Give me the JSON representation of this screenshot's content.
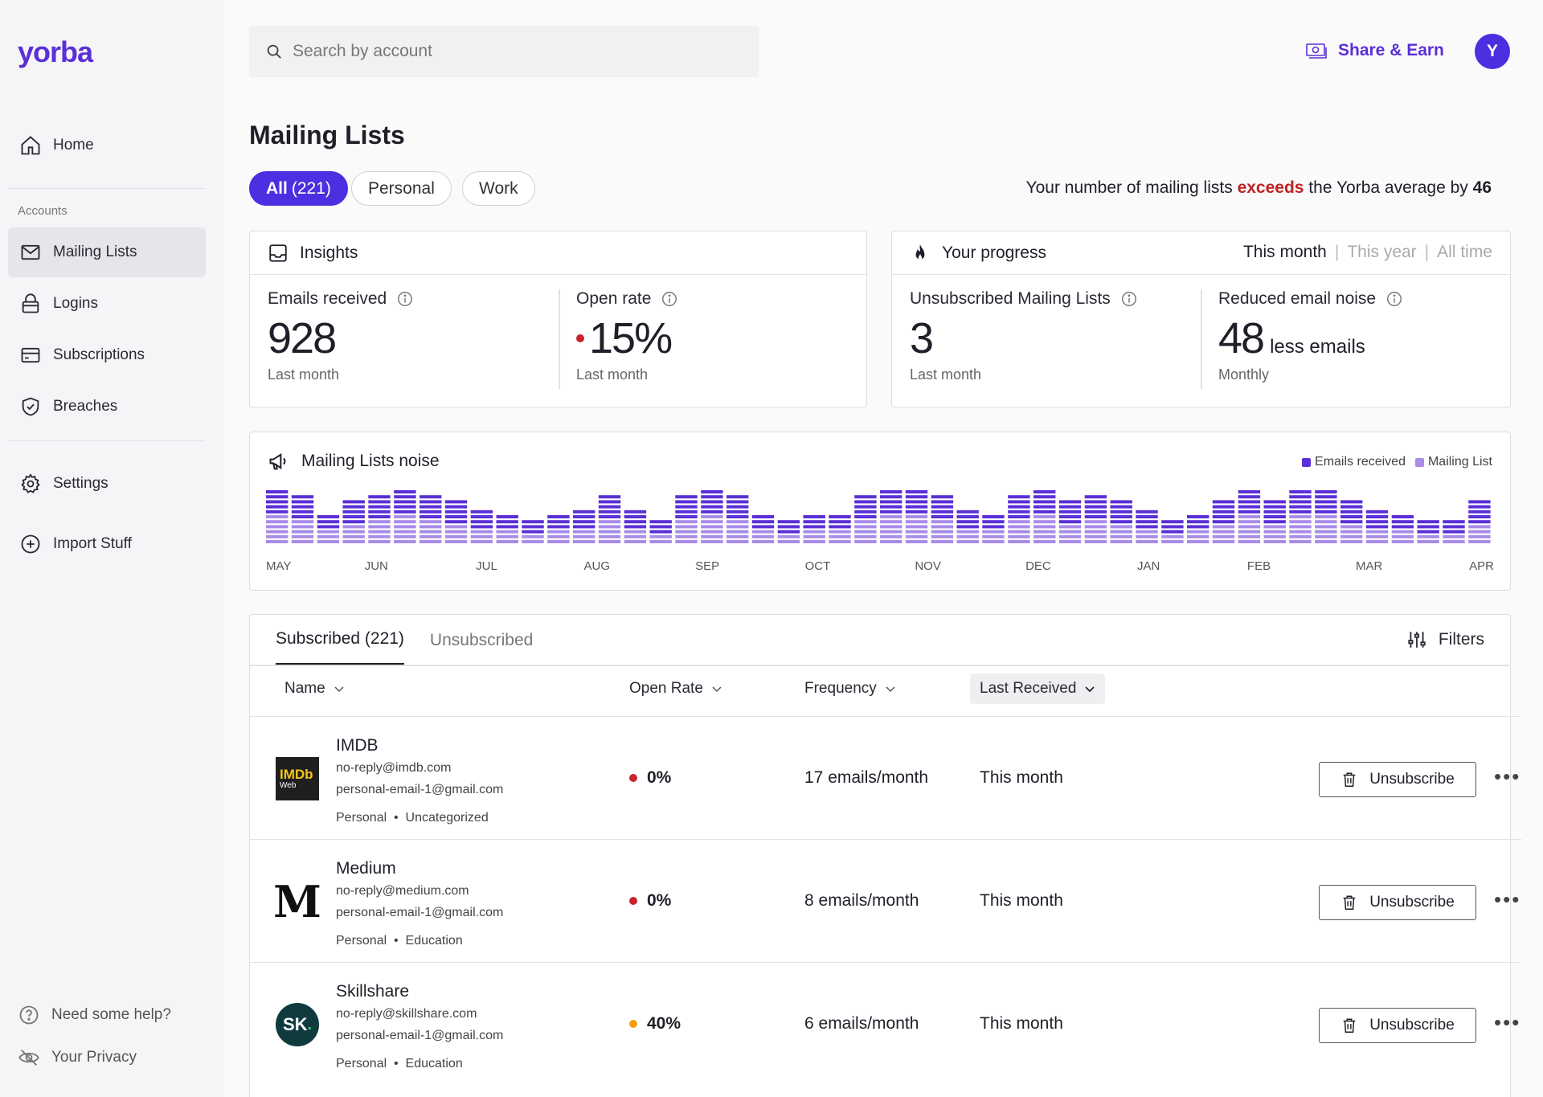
{
  "app": {
    "logo": "yorba"
  },
  "sidebar": {
    "home": "Home",
    "section": "Accounts",
    "items": [
      {
        "label": "Mailing Lists",
        "icon": "mail-icon",
        "active": true
      },
      {
        "label": "Logins",
        "icon": "lock-icon"
      },
      {
        "label": "Subscriptions",
        "icon": "credit-card-icon"
      },
      {
        "label": "Breaches",
        "icon": "shield-icon"
      }
    ],
    "settings": "Settings",
    "import": "Import Stuff",
    "help": "Need some help?",
    "privacy": "Your Privacy"
  },
  "header": {
    "search_placeholder": "Search by account",
    "share": "Share & Earn",
    "avatar": "Y"
  },
  "page": {
    "title": "Mailing Lists",
    "chips": [
      {
        "label": "All",
        "count": "(221)",
        "active": true
      },
      {
        "label": "Personal"
      },
      {
        "label": "Work"
      }
    ],
    "notice": {
      "pre": "Your number of mailing lists ",
      "emph": "exceeds",
      "post": " the Yorba average by ",
      "num": "46"
    }
  },
  "insights": {
    "title": "Insights",
    "emails_label": "Emails received",
    "emails_value": "928",
    "emails_sub": "Last month",
    "open_label": "Open rate",
    "open_value": "15%",
    "open_sub": "Last month"
  },
  "progress": {
    "title": "Your progress",
    "periods": [
      "This month",
      "This year",
      "All time"
    ],
    "unsub_label": "Unsubscribed Mailing Lists",
    "unsub_value": "3",
    "unsub_sub": "Last month",
    "noise_label": "Reduced email noise",
    "noise_value": "48",
    "noise_suffix": "less emails",
    "noise_sub": "Monthly"
  },
  "noise_chart": {
    "title": "Mailing Lists noise",
    "legend": [
      "Emails received",
      "Mailing List"
    ],
    "colors": {
      "emails": "#5b2fd6",
      "lists": "#a98ce8"
    }
  },
  "chart_data": {
    "type": "bar",
    "title": "Mailing Lists noise",
    "x_tick_labels": [
      "MAY",
      "JUN",
      "JUL",
      "AUG",
      "SEP",
      "OCT",
      "NOV",
      "DEC",
      "JAN",
      "FEB",
      "MAR",
      "APR"
    ],
    "series": [
      {
        "name": "Emails received"
      },
      {
        "name": "Mailing List"
      }
    ],
    "values": [
      9,
      8,
      5,
      7,
      8,
      9,
      8,
      7,
      6,
      5,
      4,
      5,
      6,
      8,
      6,
      4,
      8,
      9,
      8,
      5,
      4,
      5,
      5,
      8,
      9,
      9,
      8,
      6,
      5,
      8,
      9,
      7,
      8,
      7,
      6,
      4,
      5,
      7,
      9,
      7,
      9,
      9,
      7,
      6,
      5,
      4,
      4,
      7
    ],
    "ylim": [
      0,
      9
    ],
    "grid": false,
    "legend_position": "top-right"
  },
  "table": {
    "tabs": [
      {
        "label": "Subscribed (221)",
        "active": true
      },
      {
        "label": "Unsubscribed"
      }
    ],
    "filters": "Filters",
    "columns": [
      "Name",
      "Open Rate",
      "Frequency",
      "Last Received"
    ],
    "unsub_label": "Unsubscribe",
    "rows": [
      {
        "name": "IMDB",
        "sender": "no-reply@imdb.com",
        "account": "personal-email-1@gmail.com",
        "tag1": "Personal",
        "tag2": "Uncategorized",
        "rate": "0%",
        "rate_color": "#c8232f",
        "freq": "17 emails/month",
        "last": "This month",
        "logo": "IMDb",
        "logo_sub": "Web"
      },
      {
        "name": "Medium",
        "sender": "no-reply@medium.com",
        "account": "personal-email-1@gmail.com",
        "tag1": "Personal",
        "tag2": "Education",
        "rate": "0%",
        "rate_color": "#c8232f",
        "freq": "8 emails/month",
        "last": "This month",
        "logo": "M"
      },
      {
        "name": "Skillshare",
        "sender": "no-reply@skillshare.com",
        "account": "personal-email-1@gmail.com",
        "tag1": "Personal",
        "tag2": "Education",
        "rate": "40%",
        "rate_color": "#f59e0b",
        "freq": "6 emails/month",
        "last": "This month",
        "logo": "SK"
      }
    ]
  }
}
